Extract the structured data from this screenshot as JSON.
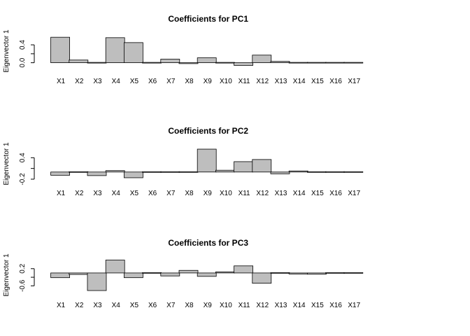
{
  "figure": {
    "background": "#ffffff",
    "bar_fill": "#bebebe",
    "bar_stroke": "#000000"
  },
  "chart_data": [
    {
      "type": "bar",
      "title": "Coefficients for PC1",
      "ylabel": "Eigenvector 1",
      "xlabel": "",
      "categories": [
        "X1",
        "X2",
        "X3",
        "X4",
        "X5",
        "X6",
        "X7",
        "X8",
        "X9",
        "X10",
        "X11",
        "X12",
        "X13",
        "X14",
        "X15",
        "X16",
        "X17"
      ],
      "values": [
        0.57,
        0.06,
        -0.01,
        0.56,
        0.45,
        -0.01,
        0.08,
        -0.02,
        0.11,
        0.01,
        -0.06,
        0.17,
        0.03,
        -0.01,
        -0.01,
        -0.01,
        -0.01
      ],
      "yticks": [
        0.0,
        0.2,
        0.4
      ],
      "ytick_labels": [
        "0.0",
        "",
        "0.4"
      ],
      "ylim": [
        -0.1,
        0.62
      ]
    },
    {
      "type": "bar",
      "title": "Coefficients for PC2",
      "ylabel": "Eigenvector 1",
      "xlabel": "",
      "categories": [
        "X1",
        "X2",
        "X3",
        "X4",
        "X5",
        "X6",
        "X7",
        "X8",
        "X9",
        "X10",
        "X11",
        "X12",
        "X13",
        "X14",
        "X15",
        "X16",
        "X17"
      ],
      "values": [
        -0.09,
        0.01,
        -0.1,
        0.04,
        -0.16,
        -0.01,
        -0.01,
        0.0,
        0.64,
        0.05,
        0.29,
        0.35,
        -0.05,
        0.03,
        0.01,
        0.01,
        0.01
      ],
      "yticks": [
        -0.2,
        0.1,
        0.4
      ],
      "ytick_labels": [
        "-0.2",
        "",
        "0.4"
      ],
      "ylim": [
        -0.22,
        0.68
      ]
    },
    {
      "type": "bar",
      "title": "Coefficients for PC3",
      "ylabel": "Eigenvector 1",
      "xlabel": "",
      "categories": [
        "X1",
        "X2",
        "X3",
        "X4",
        "X5",
        "X6",
        "X7",
        "X8",
        "X9",
        "X10",
        "X11",
        "X12",
        "X13",
        "X14",
        "X15",
        "X16",
        "X17"
      ],
      "values": [
        -0.22,
        -0.07,
        -0.82,
        0.6,
        -0.22,
        0.02,
        -0.14,
        0.12,
        -0.16,
        0.05,
        0.33,
        -0.48,
        0.02,
        -0.05,
        -0.06,
        0.01,
        0.01
      ],
      "yticks": [
        -0.6,
        -0.2,
        0.2
      ],
      "ytick_labels": [
        "-0.6",
        "",
        "0.2"
      ],
      "ylim": [
        -0.85,
        0.65
      ]
    }
  ]
}
